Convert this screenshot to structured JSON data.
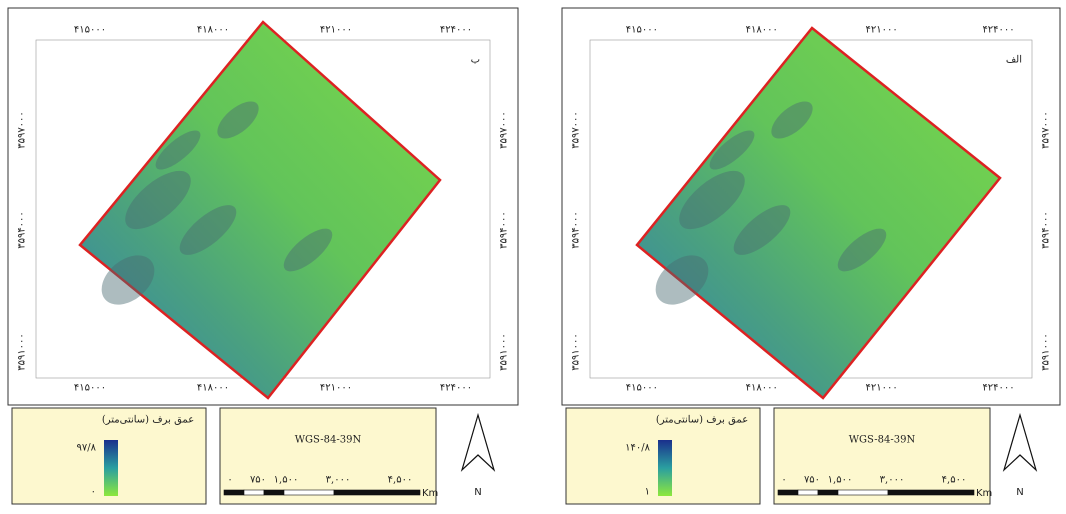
{
  "panels": [
    {
      "label": "ب",
      "x_ticks": [
        "۴۱۵۰۰۰",
        "۴۱۸۰۰۰",
        "۴۲۱۰۰۰",
        "۴۲۴۰۰۰"
      ],
      "y_ticks": [
        "۳۵۹۷۰۰۰",
        "۳۵۹۴۰۰۰",
        "۳۵۹۱۰۰۰"
      ],
      "legend": {
        "title": "عمق برف (سانتی‌متر)",
        "max": "۹۷/۸",
        "min": "۰"
      },
      "projection": "WGS-84-39N",
      "scale_labels": [
        "۰",
        "۷۵۰",
        "۱,۵۰۰",
        "۳,۰۰۰",
        "۴,۵۰۰"
      ],
      "scale_unit": "Km",
      "north": "N"
    },
    {
      "label": "الف",
      "x_ticks": [
        "۴۱۵۰۰۰",
        "۴۱۸۰۰۰",
        "۴۲۱۰۰۰",
        "۴۲۴۰۰۰"
      ],
      "y_ticks": [
        "۳۵۹۷۰۰۰",
        "۳۵۹۴۰۰۰",
        "۳۵۹۱۰۰۰"
      ],
      "legend": {
        "title": "عمق برف (سانتی‌متر)",
        "max": "۱۴۰/۸",
        "min": "۱"
      },
      "projection": "WGS-84-39N",
      "scale_labels": [
        "۰",
        "۷۵۰",
        "۱,۵۰۰",
        "۳,۰۰۰",
        "۴,۵۰۰"
      ],
      "scale_unit": "Km",
      "north": "N"
    }
  ]
}
